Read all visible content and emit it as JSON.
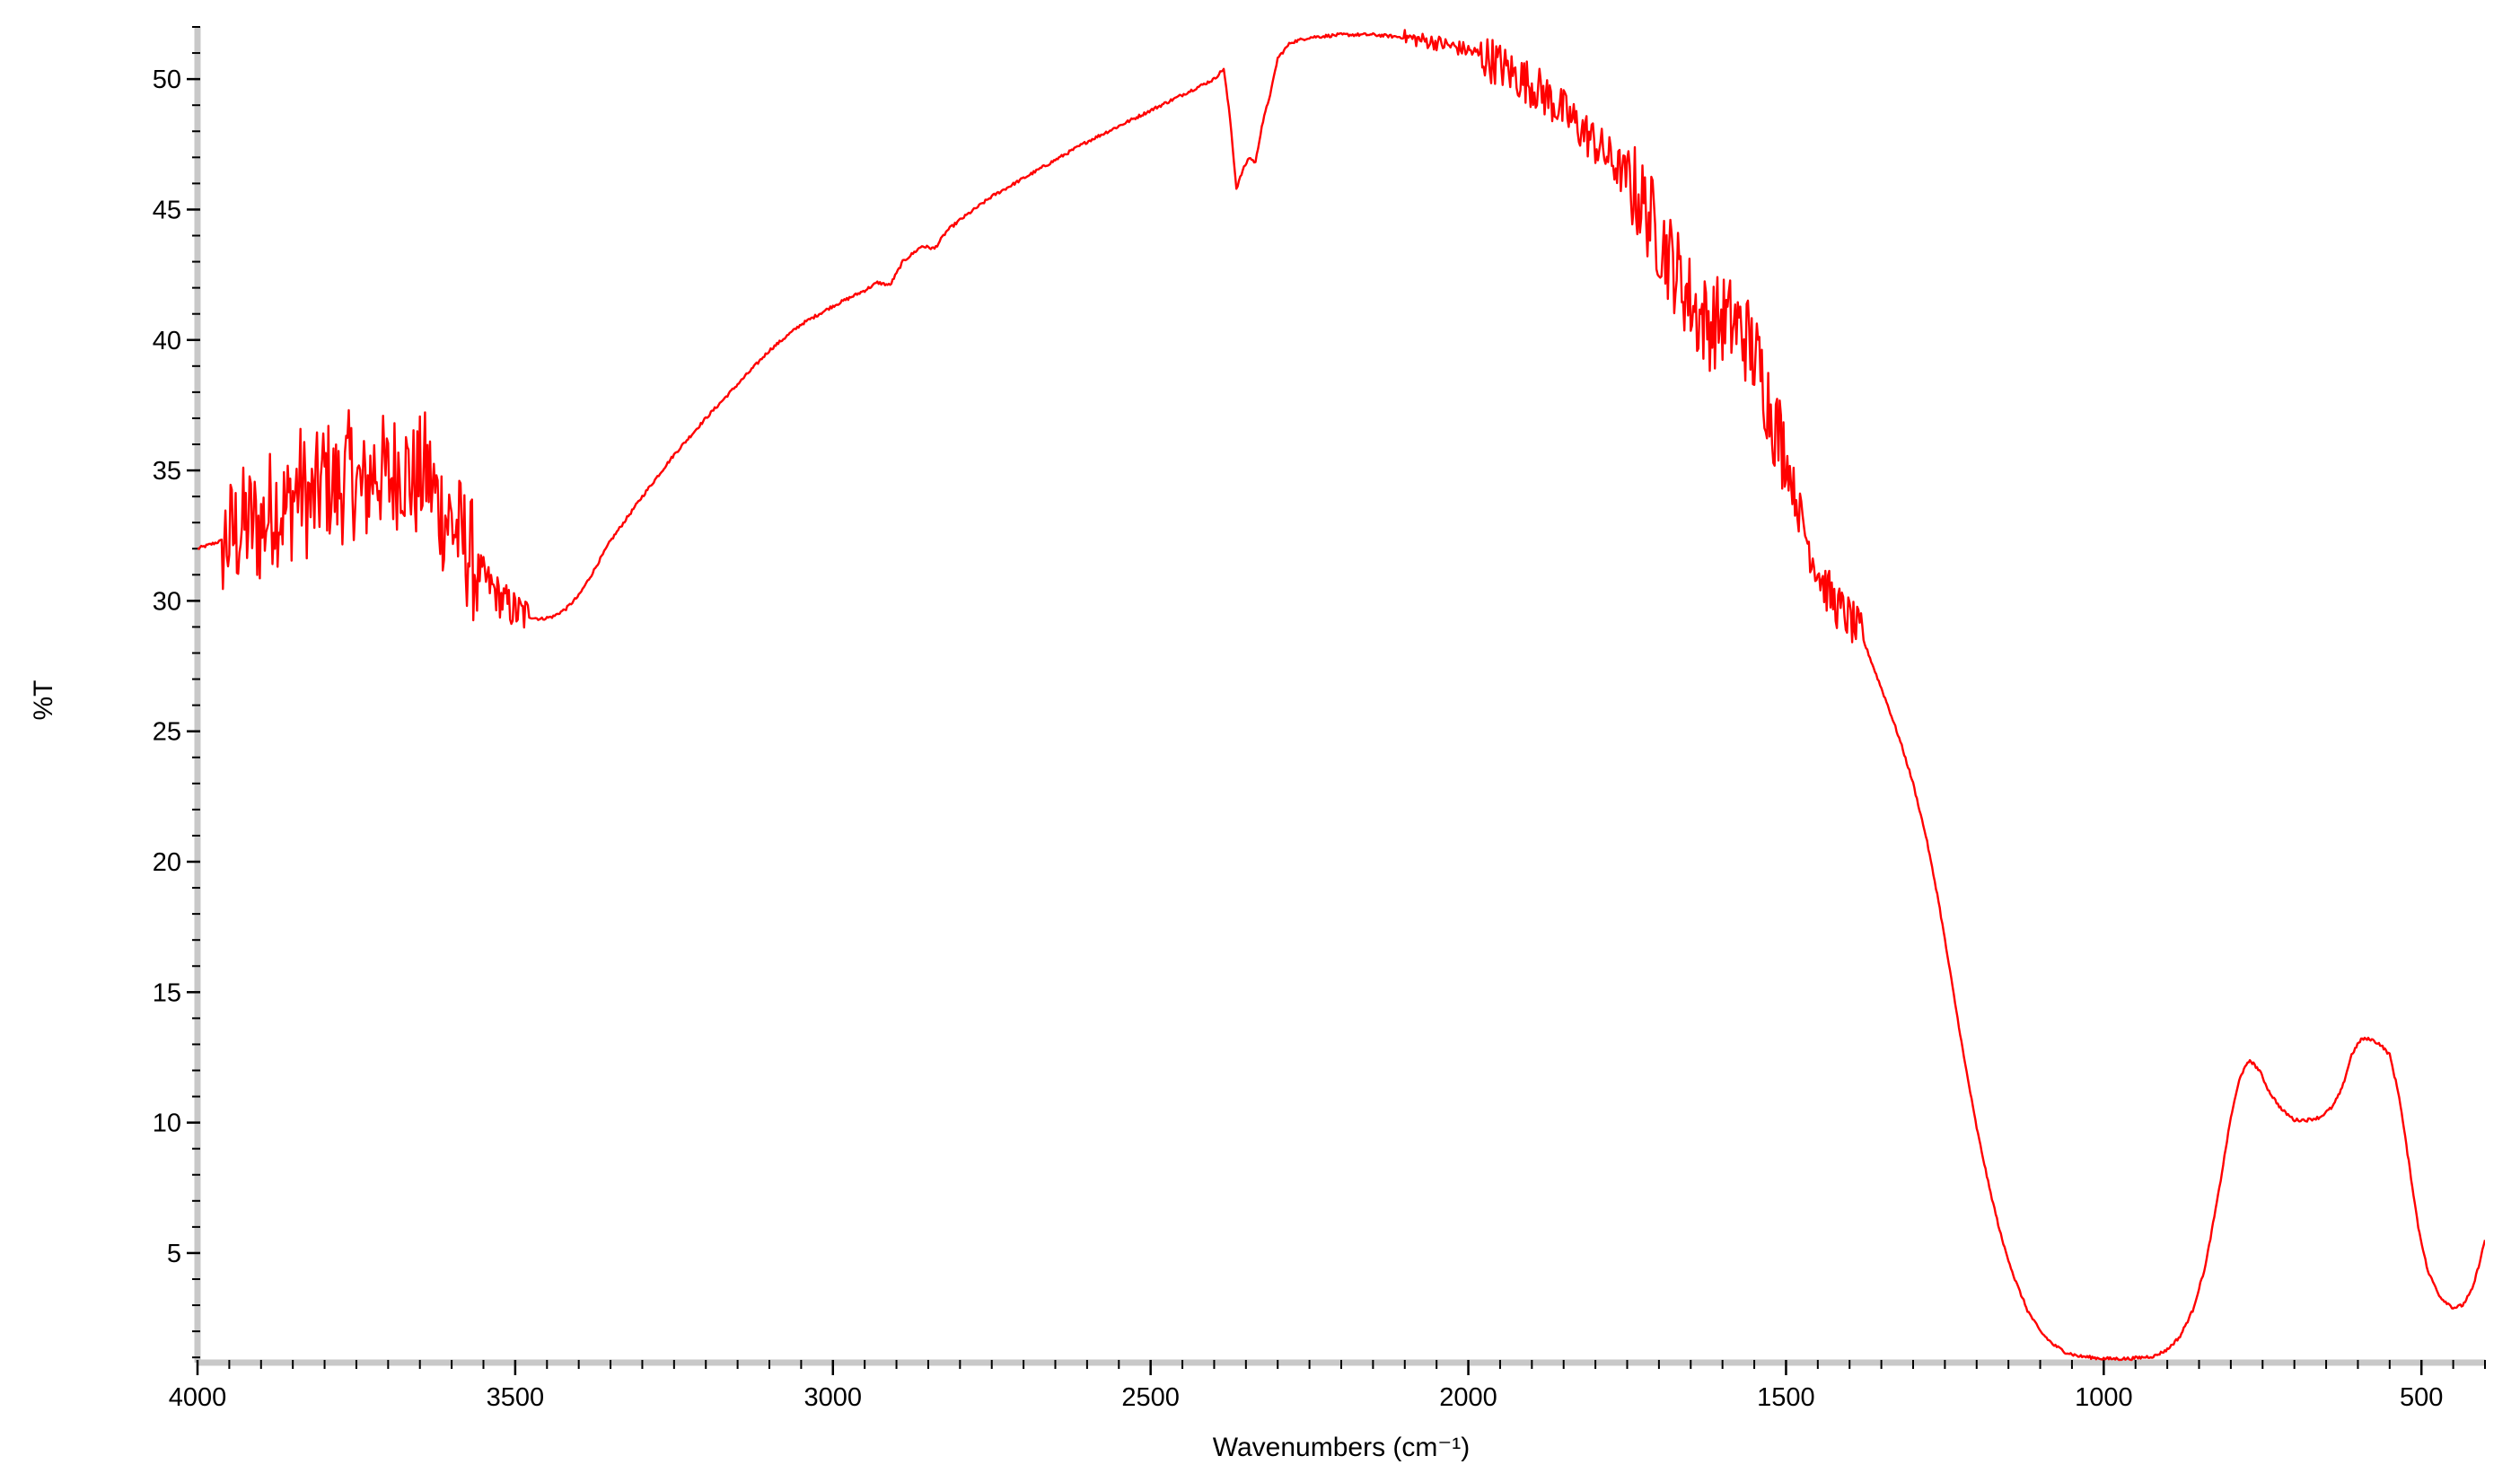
{
  "chart_data": {
    "type": "line",
    "title": "",
    "xlabel": "Wavenumbers (cm⁻¹)",
    "ylabel": "%T",
    "xlim": [
      4000,
      400
    ],
    "ylim": [
      0.8,
      52
    ],
    "x_reversed": true,
    "grid": false,
    "legend": "none",
    "x_ticks": [
      4000,
      3500,
      3000,
      2500,
      2000,
      1500,
      1000,
      500
    ],
    "y_ticks": [
      5,
      10,
      15,
      20,
      25,
      30,
      35,
      40,
      45,
      50
    ],
    "series": [
      {
        "color": "#ff0000",
        "points": [
          [
            4000,
            32.0
          ],
          [
            3950,
            32.4
          ],
          [
            3920,
            33.0
          ],
          [
            3900,
            32.8
          ],
          [
            3880,
            33.8
          ],
          [
            3860,
            33.4
          ],
          [
            3840,
            34.5
          ],
          [
            3820,
            33.6
          ],
          [
            3800,
            34.8
          ],
          [
            3780,
            34.2
          ],
          [
            3760,
            35.0
          ],
          [
            3740,
            34.0
          ],
          [
            3720,
            35.2
          ],
          [
            3700,
            34.6
          ],
          [
            3680,
            35.3
          ],
          [
            3660,
            34.5
          ],
          [
            3640,
            35.0
          ],
          [
            3620,
            33.6
          ],
          [
            3600,
            33.0
          ],
          [
            3580,
            32.2
          ],
          [
            3560,
            31.2
          ],
          [
            3540,
            30.6
          ],
          [
            3520,
            30.0
          ],
          [
            3500,
            29.6
          ],
          [
            3480,
            29.4
          ],
          [
            3460,
            29.3
          ],
          [
            3440,
            29.4
          ],
          [
            3420,
            29.7
          ],
          [
            3400,
            30.2
          ],
          [
            3380,
            31.0
          ],
          [
            3350,
            32.3
          ],
          [
            3300,
            34.0
          ],
          [
            3250,
            35.6
          ],
          [
            3200,
            37.0
          ],
          [
            3150,
            38.3
          ],
          [
            3100,
            39.6
          ],
          [
            3050,
            40.6
          ],
          [
            3000,
            41.3
          ],
          [
            2950,
            41.9
          ],
          [
            2930,
            42.2
          ],
          [
            2910,
            42.1
          ],
          [
            2890,
            43.0
          ],
          [
            2860,
            43.6
          ],
          [
            2840,
            43.5
          ],
          [
            2820,
            44.2
          ],
          [
            2800,
            44.6
          ],
          [
            2750,
            45.5
          ],
          [
            2700,
            46.2
          ],
          [
            2650,
            46.9
          ],
          [
            2600,
            47.6
          ],
          [
            2550,
            48.2
          ],
          [
            2500,
            48.8
          ],
          [
            2450,
            49.4
          ],
          [
            2400,
            50.0
          ],
          [
            2385,
            50.4
          ],
          [
            2375,
            48.5
          ],
          [
            2365,
            45.8
          ],
          [
            2355,
            46.5
          ],
          [
            2345,
            47.0
          ],
          [
            2335,
            46.8
          ],
          [
            2325,
            48.2
          ],
          [
            2310,
            49.6
          ],
          [
            2300,
            50.8
          ],
          [
            2280,
            51.4
          ],
          [
            2250,
            51.6
          ],
          [
            2200,
            51.7
          ],
          [
            2150,
            51.7
          ],
          [
            2100,
            51.6
          ],
          [
            2050,
            51.4
          ],
          [
            2000,
            51.1
          ],
          [
            1960,
            50.7
          ],
          [
            1930,
            50.2
          ],
          [
            1900,
            49.8
          ],
          [
            1870,
            49.2
          ],
          [
            1840,
            48.5
          ],
          [
            1810,
            47.8
          ],
          [
            1780,
            47.0
          ],
          [
            1750,
            46.2
          ],
          [
            1720,
            45.0
          ],
          [
            1700,
            44.0
          ],
          [
            1680,
            43.0
          ],
          [
            1660,
            42.0
          ],
          [
            1640,
            41.0
          ],
          [
            1620,
            40.6
          ],
          [
            1600,
            40.8
          ],
          [
            1580,
            40.6
          ],
          [
            1560,
            40.0
          ],
          [
            1540,
            38.8
          ],
          [
            1520,
            37.0
          ],
          [
            1500,
            35.5
          ],
          [
            1480,
            33.5
          ],
          [
            1460,
            31.8
          ],
          [
            1440,
            30.6
          ],
          [
            1420,
            29.8
          ],
          [
            1400,
            29.3
          ],
          [
            1380,
            28.6
          ],
          [
            1360,
            27.3
          ],
          [
            1340,
            26.0
          ],
          [
            1320,
            24.6
          ],
          [
            1300,
            23.0
          ],
          [
            1280,
            21.0
          ],
          [
            1260,
            18.5
          ],
          [
            1240,
            15.5
          ],
          [
            1220,
            12.5
          ],
          [
            1200,
            9.8
          ],
          [
            1180,
            7.5
          ],
          [
            1160,
            5.5
          ],
          [
            1140,
            4.0
          ],
          [
            1120,
            2.8
          ],
          [
            1100,
            2.0
          ],
          [
            1080,
            1.5
          ],
          [
            1060,
            1.2
          ],
          [
            1040,
            1.05
          ],
          [
            1020,
            1.0
          ],
          [
            1000,
            0.95
          ],
          [
            980,
            0.95
          ],
          [
            960,
            0.95
          ],
          [
            940,
            1.0
          ],
          [
            920,
            1.05
          ],
          [
            900,
            1.3
          ],
          [
            880,
            1.8
          ],
          [
            860,
            2.8
          ],
          [
            840,
            4.5
          ],
          [
            820,
            7.2
          ],
          [
            800,
            10.2
          ],
          [
            785,
            11.8
          ],
          [
            770,
            12.4
          ],
          [
            755,
            12.0
          ],
          [
            740,
            11.2
          ],
          [
            720,
            10.5
          ],
          [
            700,
            10.1
          ],
          [
            680,
            10.1
          ],
          [
            660,
            10.2
          ],
          [
            640,
            10.6
          ],
          [
            625,
            11.3
          ],
          [
            610,
            12.6
          ],
          [
            595,
            13.2
          ],
          [
            580,
            13.2
          ],
          [
            565,
            13.0
          ],
          [
            550,
            12.6
          ],
          [
            535,
            11.0
          ],
          [
            520,
            8.5
          ],
          [
            505,
            6.0
          ],
          [
            490,
            4.3
          ],
          [
            470,
            3.3
          ],
          [
            450,
            2.9
          ],
          [
            435,
            3.0
          ],
          [
            420,
            3.6
          ],
          [
            410,
            4.5
          ],
          [
            400,
            5.5
          ]
        ]
      }
    ]
  }
}
